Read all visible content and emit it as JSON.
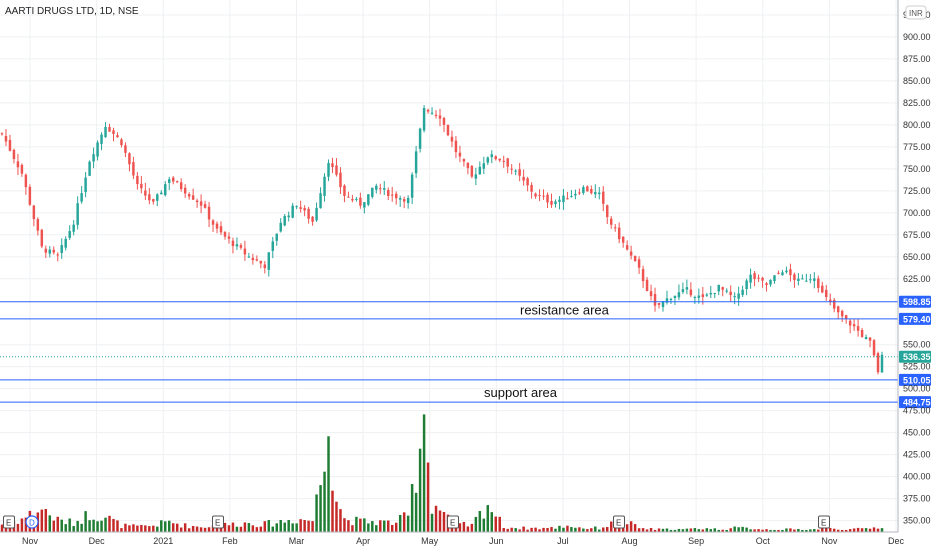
{
  "chart_data": {
    "type": "candlestick",
    "title": "AARTI DRUGS LTD, 1D, NSE",
    "currency": "INR",
    "y_range": [
      337,
      942
    ],
    "y_ticks": [
      350,
      375,
      400,
      425,
      450,
      475,
      500,
      525,
      550,
      625,
      650,
      675,
      700,
      725,
      750,
      775,
      800,
      825,
      850,
      875,
      900,
      925
    ],
    "y_tick_labels": [
      "350.00",
      "375.00",
      "400.00",
      "425.00",
      "450.00",
      "475.00",
      "500.00",
      "525.00",
      "550.00",
      "625.00",
      "650.00",
      "675.00",
      "700.00",
      "725.00",
      "750.00",
      "775.00",
      "800.00",
      "825.00",
      "850.00",
      "875.00",
      "900.00",
      "925.00"
    ],
    "x_labels": [
      "Nov",
      "Dec",
      "2021",
      "Feb",
      "Mar",
      "Apr",
      "May",
      "Jun",
      "Jul",
      "Aug",
      "Sep",
      "Oct",
      "Nov",
      "Dec"
    ],
    "grid": true,
    "horizontal_lines": [
      {
        "value": 598.85,
        "label": "598.85",
        "color": "#2962ff"
      },
      {
        "value": 579.4,
        "label": "579.40",
        "color": "#2962ff"
      },
      {
        "value": 510.05,
        "label": "510.05",
        "color": "#2962ff"
      },
      {
        "value": 484.75,
        "label": "484.75",
        "color": "#2962ff"
      }
    ],
    "last_price": {
      "value": 536.35,
      "label": "536.35",
      "color": "#26a69a"
    },
    "annotations": [
      {
        "text": "resistance area",
        "price": 590
      },
      {
        "text": "support area",
        "price": 496
      }
    ],
    "event_markers": [
      {
        "text": "E",
        "month_index": 0
      },
      {
        "text": "D",
        "month_index": 0
      },
      {
        "text": "E",
        "month_index": 3
      },
      {
        "text": "E",
        "month_index": 6
      },
      {
        "text": "E",
        "month_index": 9
      },
      {
        "text": "E",
        "month_index": 12
      }
    ],
    "colors": {
      "up": "#26a69a",
      "down": "#ef5350",
      "vol_up": "#1e7d32",
      "vol_down": "#c62828"
    },
    "price_anchors": [
      [
        0,
        790
      ],
      [
        5,
        745
      ],
      [
        10,
        660
      ],
      [
        14,
        650
      ],
      [
        18,
        690
      ],
      [
        22,
        760
      ],
      [
        26,
        800
      ],
      [
        30,
        780
      ],
      [
        34,
        730
      ],
      [
        38,
        710
      ],
      [
        42,
        740
      ],
      [
        46,
        725
      ],
      [
        50,
        710
      ],
      [
        54,
        680
      ],
      [
        58,
        665
      ],
      [
        62,
        650
      ],
      [
        66,
        640
      ],
      [
        70,
        690
      ],
      [
        74,
        710
      ],
      [
        78,
        690
      ],
      [
        82,
        760
      ],
      [
        86,
        720
      ],
      [
        90,
        710
      ],
      [
        94,
        730
      ],
      [
        98,
        720
      ],
      [
        102,
        715
      ],
      [
        106,
        820
      ],
      [
        110,
        810
      ],
      [
        114,
        770
      ],
      [
        118,
        740
      ],
      [
        122,
        765
      ],
      [
        126,
        760
      ],
      [
        130,
        740
      ],
      [
        134,
        720
      ],
      [
        138,
        712
      ],
      [
        142,
        718
      ],
      [
        146,
        728
      ],
      [
        150,
        720
      ],
      [
        152,
        695
      ],
      [
        156,
        665
      ],
      [
        160,
        635
      ],
      [
        164,
        592
      ],
      [
        168,
        605
      ],
      [
        172,
        612
      ],
      [
        176,
        602
      ],
      [
        180,
        615
      ],
      [
        184,
        602
      ],
      [
        188,
        628
      ],
      [
        192,
        618
      ],
      [
        196,
        635
      ],
      [
        200,
        622
      ],
      [
        204,
        628
      ],
      [
        206,
        608
      ],
      [
        210,
        585
      ],
      [
        214,
        570
      ],
      [
        218,
        552
      ],
      [
        220,
        520
      ],
      [
        221,
        536
      ]
    ],
    "volume_anchors": [
      [
        0,
        6
      ],
      [
        5,
        10
      ],
      [
        10,
        18
      ],
      [
        14,
        9
      ],
      [
        18,
        7
      ],
      [
        22,
        14
      ],
      [
        26,
        12
      ],
      [
        30,
        5
      ],
      [
        34,
        4
      ],
      [
        38,
        5
      ],
      [
        42,
        8
      ],
      [
        46,
        5
      ],
      [
        50,
        4
      ],
      [
        54,
        5
      ],
      [
        58,
        6
      ],
      [
        62,
        7
      ],
      [
        66,
        6
      ],
      [
        70,
        8
      ],
      [
        74,
        10
      ],
      [
        78,
        9
      ],
      [
        82,
        70
      ],
      [
        84,
        28
      ],
      [
        86,
        10
      ],
      [
        90,
        8
      ],
      [
        94,
        8
      ],
      [
        98,
        7
      ],
      [
        102,
        12
      ],
      [
        106,
        86
      ],
      [
        108,
        22
      ],
      [
        110,
        18
      ],
      [
        114,
        6
      ],
      [
        118,
        5
      ],
      [
        122,
        22
      ],
      [
        126,
        4
      ],
      [
        130,
        3
      ],
      [
        134,
        3
      ],
      [
        138,
        3
      ],
      [
        142,
        5
      ],
      [
        146,
        3
      ],
      [
        150,
        3
      ],
      [
        152,
        5
      ],
      [
        156,
        9
      ],
      [
        160,
        3
      ],
      [
        164,
        2
      ],
      [
        168,
        2
      ],
      [
        172,
        2
      ],
      [
        176,
        3
      ],
      [
        180,
        2
      ],
      [
        184,
        3
      ],
      [
        188,
        3
      ],
      [
        192,
        2
      ],
      [
        196,
        2
      ],
      [
        200,
        2
      ],
      [
        204,
        2
      ],
      [
        206,
        3
      ],
      [
        210,
        2
      ],
      [
        214,
        2
      ],
      [
        218,
        3
      ],
      [
        221,
        4
      ]
    ],
    "volume_scale_max": 100,
    "volume_height": 0.26,
    "candle_count": 222
  }
}
